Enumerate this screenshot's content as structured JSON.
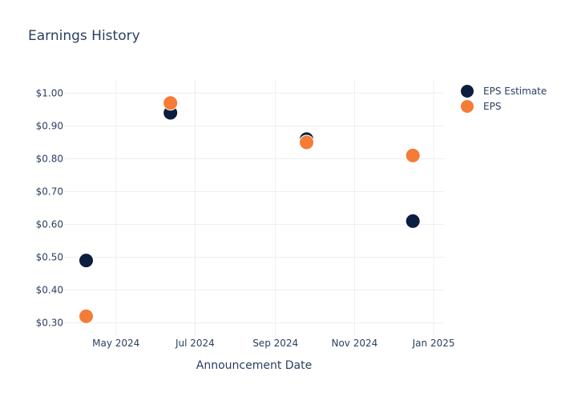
{
  "chart_data": {
    "type": "scatter",
    "title": "Earnings History",
    "xlabel": "Announcement Date",
    "ylabel": "",
    "x_ticks": [
      {
        "date": "2024-05-01",
        "label": "May 2024"
      },
      {
        "date": "2024-07-01",
        "label": "Jul 2024"
      },
      {
        "date": "2024-09-01",
        "label": "Sep 2024"
      },
      {
        "date": "2024-11-01",
        "label": "Nov 2024"
      },
      {
        "date": "2025-01-01",
        "label": "Jan 2025"
      }
    ],
    "xlim": [
      "2024-03-22",
      "2025-01-09"
    ],
    "ylim": [
      0.26,
      1.04
    ],
    "y_ticks": [
      {
        "value": 0.3,
        "label": "$0.30"
      },
      {
        "value": 0.4,
        "label": "$0.40"
      },
      {
        "value": 0.5,
        "label": "$0.50"
      },
      {
        "value": 0.6,
        "label": "$0.60"
      },
      {
        "value": 0.7,
        "label": "$0.70"
      },
      {
        "value": 0.8,
        "label": "$0.80"
      },
      {
        "value": 0.9,
        "label": "$0.90"
      },
      {
        "value": 1.0,
        "label": "$1.00"
      }
    ],
    "grid": true,
    "legend_position": "top-right",
    "series": [
      {
        "name": "EPS Estimate",
        "color": "#0b1e3f",
        "points": [
          {
            "x": "2024-04-08",
            "y": 0.49
          },
          {
            "x": "2024-06-12",
            "y": 0.94
          },
          {
            "x": "2024-09-25",
            "y": 0.86
          },
          {
            "x": "2024-12-16",
            "y": 0.61
          }
        ]
      },
      {
        "name": "EPS",
        "color": "#f47c36",
        "points": [
          {
            "x": "2024-04-08",
            "y": 0.32
          },
          {
            "x": "2024-06-12",
            "y": 0.97
          },
          {
            "x": "2024-09-25",
            "y": 0.85
          },
          {
            "x": "2024-12-16",
            "y": 0.81
          }
        ]
      }
    ]
  }
}
